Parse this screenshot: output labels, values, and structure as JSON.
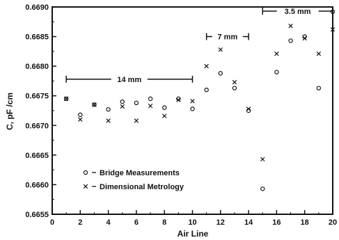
{
  "chart_data": {
    "type": "scatter",
    "title": "",
    "xlabel": "Air Line",
    "ylabel": "C, pF /cm",
    "xlim": [
      0,
      20
    ],
    "ylim": [
      0.6655,
      0.669
    ],
    "x_ticks": [
      0,
      2,
      4,
      6,
      8,
      10,
      12,
      14,
      16,
      18,
      20
    ],
    "y_ticks": [
      "0.6655",
      "0.6660",
      "0.6665",
      "0.6670",
      "0.6675",
      "0.6680",
      "0.6685",
      "0.6690"
    ],
    "grid": false,
    "legend_position": "lower-left",
    "series": [
      {
        "name": "Bridge Measurements",
        "marker": "circle",
        "points": [
          [
            1,
            0.66745
          ],
          [
            2,
            0.66718
          ],
          [
            3,
            0.66735
          ],
          [
            4,
            0.66727
          ],
          [
            5,
            0.6674
          ],
          [
            6,
            0.66738
          ],
          [
            7,
            0.66745
          ],
          [
            8,
            0.6673
          ],
          [
            9,
            0.66745
          ],
          [
            10,
            0.66728
          ],
          [
            11,
            0.6676
          ],
          [
            12,
            0.66788
          ],
          [
            13,
            0.66763
          ],
          [
            14,
            0.66725
          ],
          [
            15,
            0.66593
          ],
          [
            16,
            0.6679
          ],
          [
            17,
            0.66843
          ],
          [
            18,
            0.6685
          ],
          [
            19,
            0.66763
          ],
          [
            20,
            0.66892
          ]
        ]
      },
      {
        "name": "Dimensional Metrology",
        "marker": "x",
        "points": [
          [
            1,
            0.66745
          ],
          [
            2,
            0.6671
          ],
          [
            3,
            0.66735
          ],
          [
            4,
            0.66708
          ],
          [
            5,
            0.66732
          ],
          [
            6,
            0.66708
          ],
          [
            7,
            0.66733
          ],
          [
            8,
            0.66716
          ],
          [
            9,
            0.66743
          ],
          [
            10,
            0.66741
          ],
          [
            11,
            0.668
          ],
          [
            12,
            0.66828
          ],
          [
            13,
            0.66773
          ],
          [
            14,
            0.66728
          ],
          [
            15,
            0.66643
          ],
          [
            16,
            0.66821
          ],
          [
            17,
            0.66868
          ],
          [
            18,
            0.66847
          ],
          [
            19,
            0.66821
          ],
          [
            20,
            0.66862
          ]
        ]
      }
    ],
    "annotations": [
      {
        "label": "14 mm",
        "x_start": 1,
        "x_end": 10,
        "y": 0.66778
      },
      {
        "label": "7 mm",
        "x_start": 11,
        "x_end": 14,
        "y": 0.6685
      },
      {
        "label": "3.5 mm",
        "x_start": 15,
        "x_end": 20,
        "y": 0.66893
      }
    ]
  }
}
